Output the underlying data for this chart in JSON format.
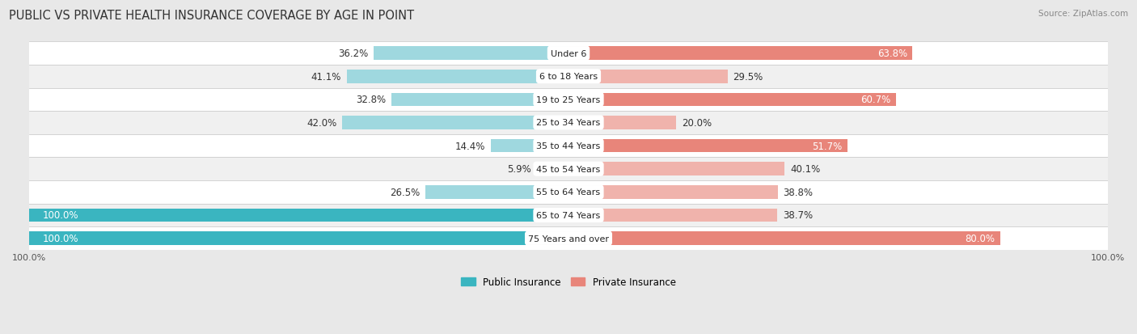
{
  "title": "PUBLIC VS PRIVATE HEALTH INSURANCE COVERAGE BY AGE IN POINT",
  "source": "Source: ZipAtlas.com",
  "categories": [
    "Under 6",
    "6 to 18 Years",
    "19 to 25 Years",
    "25 to 34 Years",
    "35 to 44 Years",
    "45 to 54 Years",
    "55 to 64 Years",
    "65 to 74 Years",
    "75 Years and over"
  ],
  "public_values": [
    36.2,
    41.1,
    32.8,
    42.0,
    14.4,
    5.9,
    26.5,
    100.0,
    100.0
  ],
  "private_values": [
    63.8,
    29.5,
    60.7,
    20.0,
    51.7,
    40.1,
    38.8,
    38.7,
    80.0
  ],
  "public_color_full": "#3ab5c0",
  "public_color_light": "#9fd8df",
  "private_color_dark": "#e8857a",
  "private_color_light": "#f0b3ac",
  "bg_color": "#e8e8e8",
  "row_colors": [
    "#ffffff",
    "#f0f0f0"
  ],
  "bar_height": 0.58,
  "max_value": 100.0,
  "title_fontsize": 10.5,
  "label_fontsize": 8.5,
  "category_fontsize": 8.0,
  "legend_fontsize": 8.5,
  "source_fontsize": 7.5,
  "private_threshold": 45.0,
  "xtick_fontsize": 8.0
}
